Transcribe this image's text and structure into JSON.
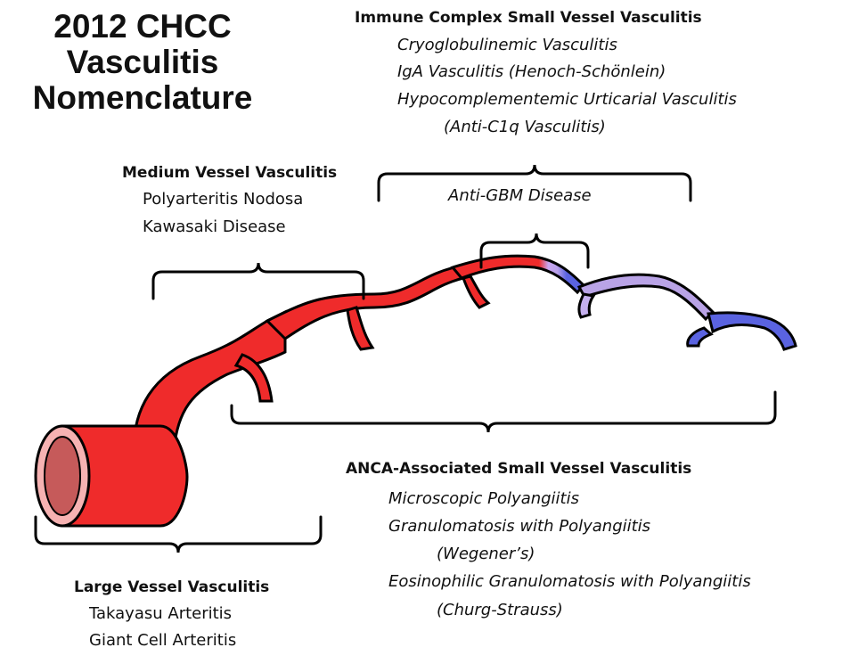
{
  "title": [
    "2012 CHCC",
    "Vasculitis",
    "Nomenclature"
  ],
  "immune_complex": {
    "heading": "Immune Complex  Small Vessel Vasculitis",
    "items": [
      "Cryoglobulinemic Vasculitis",
      "IgA Vasculitis (Henoch-Schönlein)",
      "Hypocomplementemic Urticarial Vasculitis",
      "(Anti-C1q Vasculitis)"
    ]
  },
  "anti_gbm": {
    "label": "Anti-GBM Disease"
  },
  "medium_vessel": {
    "heading": "Medium Vessel Vasculitis",
    "items": [
      "Polyarteritis Nodosa",
      "Kawasaki Disease"
    ]
  },
  "anca": {
    "heading": "ANCA-Associated Small Vessel Vasculitis",
    "items": [
      "Microscopic Polyangiitis",
      "Granulomatosis with Polyangiitis",
      "(Wegener’s)",
      "Eosinophilic Granulomatosis with Polyangiitis",
      "(Churg-Strauss)"
    ]
  },
  "large_vessel": {
    "heading": "Large Vessel Vasculitis",
    "items": [
      "Takayasu Arteritis",
      "Giant Cell Arteritis"
    ]
  },
  "colors": {
    "artery": "#ef2b2b",
    "transition": "#b9a3e6",
    "vein": "#5a63e0",
    "lumen": "#c65a5a",
    "rim": "#f6b2b2"
  }
}
